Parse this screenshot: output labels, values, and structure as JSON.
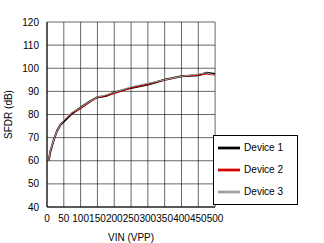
{
  "chart_data": {
    "type": "line",
    "x_label": "VIN (VPP)",
    "y_label": "SFDR (dB)",
    "x": [
      5,
      10,
      20,
      30,
      40,
      50,
      75,
      100,
      125,
      150,
      175,
      200,
      250,
      300,
      350,
      400,
      450,
      475,
      500
    ],
    "series": [
      {
        "name": "Device 1",
        "color": "#000000",
        "values": [
          60,
          64,
          69,
          73,
          75.5,
          77,
          80.5,
          83,
          85.5,
          87.5,
          88,
          89.5,
          91.5,
          93,
          95,
          96.5,
          97,
          98,
          97.5
        ]
      },
      {
        "name": "Device 2",
        "color": "#d40000",
        "values": [
          60,
          64,
          69,
          73,
          75.5,
          77.5,
          80.5,
          82.5,
          85,
          87.5,
          88,
          89,
          91.5,
          93,
          95,
          96.5,
          97,
          97.5,
          97
        ]
      },
      {
        "name": "Device 3",
        "color": "#a0a0a0",
        "values": [
          60,
          64.5,
          69,
          73,
          75.5,
          77.5,
          81,
          83,
          85.5,
          87.5,
          88.5,
          89.5,
          92,
          93.5,
          95,
          96.5,
          97.5,
          98,
          97
        ]
      }
    ],
    "xlim": [
      0,
      500
    ],
    "xticks": [
      0,
      50,
      100,
      150,
      200,
      250,
      300,
      350,
      400,
      450,
      500
    ],
    "ylim": [
      40,
      120
    ],
    "yticks": [
      40,
      50,
      60,
      70,
      80,
      90,
      100,
      110,
      120
    ],
    "grid": true,
    "legend": "lower right"
  }
}
